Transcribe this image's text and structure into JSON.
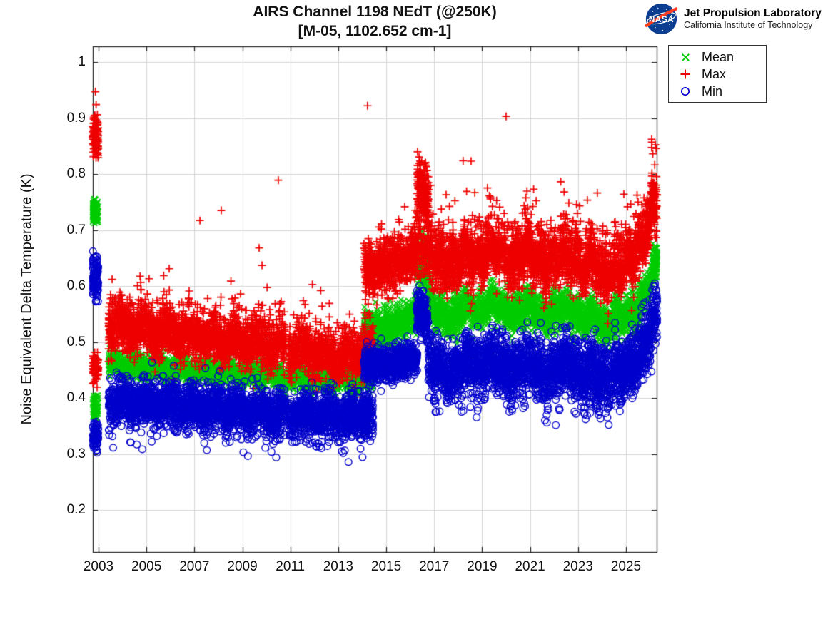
{
  "header": {
    "title_line1": "AIRS Channel 1198 NEdT (@250K)",
    "title_line2": "[M-05, 1102.652 cm-1]"
  },
  "logo": {
    "ball_text": "NASA",
    "org_name": "Jet Propulsion Laboratory",
    "org_sub": "California Institute of Technology",
    "ball_color": "#0b3d91",
    "swoosh_color": "#fc3d21"
  },
  "chart_data": {
    "type": "scatter",
    "title": "AIRS Channel 1198 NEdT (@250K)",
    "subtitle": "[M-05, 1102.652 cm-1]",
    "xlabel": "",
    "ylabel": "Noise Equivalent Delta Temperature (K)",
    "xlim": [
      2002.762,
      2026.282
    ],
    "ylim": [
      0.1251,
      1.028
    ],
    "grid": true,
    "grid_color": "#d5d5d5",
    "axis_color": "#151515",
    "legend_position": "top-right",
    "xticks": {
      "values": [
        2003,
        2005,
        2007,
        2009,
        2011,
        2013,
        2015,
        2017,
        2019,
        2021,
        2023,
        2025
      ],
      "labels": [
        "2003",
        "2005",
        "2007",
        "2009",
        "2011",
        "2013",
        "2015",
        "2017",
        "2019",
        "2021",
        "2023",
        "2025"
      ]
    },
    "yticks": {
      "values": [
        0.2,
        0.3,
        0.4,
        0.5,
        0.6,
        0.7,
        0.8,
        0.9,
        1.0
      ],
      "labels": [
        "0.2",
        "0.3",
        "0.4",
        "0.5",
        "0.6",
        "0.7",
        "0.8",
        "0.9",
        "1"
      ]
    },
    "series": [
      {
        "name": "Mean",
        "marker": "x",
        "color": "#00cc00",
        "segments": [
          {
            "t0": 2002.76,
            "t1": 2002.99,
            "n": 95,
            "keys": [
              [
                2002.76,
                0.735
              ]
            ],
            "spread": 0.012,
            "clip": [
              0.712,
              0.757
            ]
          },
          {
            "t0": 2002.76,
            "t1": 2002.99,
            "n": 65,
            "keys": [
              [
                2002.76,
                0.381
              ]
            ],
            "spread": 0.014,
            "clip": [
              0.354,
              0.408
            ]
          },
          {
            "t0": 2003.42,
            "t1": 2014.45,
            "n": 3450,
            "keys": [
              [
                2003.42,
                0.459
              ],
              [
                2005,
                0.455
              ],
              [
                2007,
                0.449
              ],
              [
                2009,
                0.444
              ],
              [
                2011,
                0.437
              ],
              [
                2013,
                0.433
              ],
              [
                2014.45,
                0.437
              ]
            ],
            "spread": 0.011,
            "osc": [
              0.006,
              0.95
            ],
            "gaps": [
              [
                2010.8,
                2010.93
              ]
            ]
          },
          {
            "t0": 2014.07,
            "t1": 2016.3,
            "n": 780,
            "keys": [
              [
                2014.07,
                0.524
              ],
              [
                2014.5,
                0.52
              ],
              [
                2015.2,
                0.528
              ],
              [
                2016.0,
                0.54
              ],
              [
                2016.3,
                0.556
              ]
            ],
            "spread": 0.016
          },
          {
            "t0": 2016.28,
            "t1": 2016.78,
            "n": 210,
            "keys": [
              [
                2016.28,
                0.648
              ],
              [
                2016.6,
                0.646
              ],
              [
                2016.78,
                0.615
              ]
            ],
            "spread": 0.024,
            "clip": [
              0.582,
              0.702
            ]
          },
          {
            "t0": 2016.75,
            "t1": 2026.3,
            "n": 3250,
            "keys": [
              [
                2016.75,
                0.568
              ],
              [
                2017.3,
                0.548
              ],
              [
                2017.8,
                0.542
              ],
              [
                2018.3,
                0.565
              ],
              [
                2018.8,
                0.55
              ],
              [
                2019.4,
                0.572
              ],
              [
                2019.9,
                0.556
              ],
              [
                2020.3,
                0.545
              ],
              [
                2020.8,
                0.568
              ],
              [
                2021.3,
                0.553
              ],
              [
                2021.8,
                0.545
              ],
              [
                2022.3,
                0.563
              ],
              [
                2022.8,
                0.556
              ],
              [
                2023.2,
                0.538
              ],
              [
                2023.6,
                0.553
              ],
              [
                2024.1,
                0.524
              ],
              [
                2024.5,
                0.54
              ],
              [
                2025.0,
                0.548
              ],
              [
                2025.5,
                0.558
              ],
              [
                2025.9,
                0.6
              ],
              [
                2026.15,
                0.632
              ],
              [
                2026.3,
                0.645
              ]
            ],
            "spread": 0.016,
            "osc": [
              0.007,
              0.52
            ]
          }
        ],
        "outliers": []
      },
      {
        "name": "Max",
        "marker": "+",
        "color": "#ee0000",
        "segments": [
          {
            "t0": 2002.76,
            "t1": 2002.99,
            "n": 115,
            "keys": [
              [
                2002.76,
                0.868
              ]
            ],
            "spread": 0.02,
            "clip": [
              0.827,
              0.909
            ]
          },
          {
            "t0": 2002.76,
            "t1": 2002.99,
            "n": 70,
            "keys": [
              [
                2002.76,
                0.454
              ]
            ],
            "spread": 0.017,
            "clip": [
              0.419,
              0.49
            ]
          },
          {
            "t0": 2003.42,
            "t1": 2014.45,
            "n": 3550,
            "keys": [
              [
                2003.42,
                0.528
              ],
              [
                2004.5,
                0.524
              ],
              [
                2006,
                0.513
              ],
              [
                2008,
                0.504
              ],
              [
                2010,
                0.494
              ],
              [
                2012,
                0.478
              ],
              [
                2013.5,
                0.474
              ],
              [
                2014.45,
                0.48
              ]
            ],
            "spread": 0.02,
            "osc": [
              0.01,
              0.95
            ],
            "spike": [
              0.12,
              0.038,
              1
            ],
            "gaps": [
              [
                2010.8,
                2010.93
              ]
            ]
          },
          {
            "t0": 2014.07,
            "t1": 2016.3,
            "n": 800,
            "keys": [
              [
                2014.07,
                0.625
              ],
              [
                2015,
                0.632
              ],
              [
                2016,
                0.65
              ],
              [
                2016.3,
                0.665
              ]
            ],
            "spread": 0.022,
            "spike": [
              0.1,
              0.03,
              1
            ]
          },
          {
            "t0": 2016.28,
            "t1": 2016.78,
            "n": 230,
            "keys": [
              [
                2016.28,
                0.772
              ],
              [
                2016.6,
                0.768
              ],
              [
                2016.78,
                0.738
              ]
            ],
            "spread": 0.027,
            "clip": [
              0.698,
              0.848
            ]
          },
          {
            "t0": 2016.3,
            "t1": 2016.78,
            "n": 90,
            "keys": [
              [
                2016.3,
                0.668
              ]
            ],
            "spread": 0.03,
            "clip": [
              0.613,
              0.72
            ]
          },
          {
            "t0": 2016.75,
            "t1": 2026.3,
            "n": 3350,
            "keys": [
              [
                2016.75,
                0.66
              ],
              [
                2017.3,
                0.64
              ],
              [
                2017.8,
                0.632
              ],
              [
                2018.3,
                0.66
              ],
              [
                2018.8,
                0.64
              ],
              [
                2019.4,
                0.67
              ],
              [
                2019.9,
                0.65
              ],
              [
                2020.3,
                0.634
              ],
              [
                2020.8,
                0.664
              ],
              [
                2021.3,
                0.647
              ],
              [
                2021.8,
                0.634
              ],
              [
                2022.3,
                0.66
              ],
              [
                2022.8,
                0.65
              ],
              [
                2023.2,
                0.63
              ],
              [
                2023.6,
                0.65
              ],
              [
                2024.1,
                0.61
              ],
              [
                2024.5,
                0.63
              ],
              [
                2025.0,
                0.64
              ],
              [
                2025.5,
                0.658
              ],
              [
                2025.9,
                0.705
              ],
              [
                2026.15,
                0.74
              ],
              [
                2026.3,
                0.752
              ]
            ],
            "spread": 0.024,
            "osc": [
              0.011,
              0.52
            ],
            "spike": [
              0.11,
              0.045,
              1
            ]
          }
        ],
        "outliers": [
          [
            2002.87,
            0.947
          ],
          [
            2002.9,
            0.924
          ],
          [
            2005.95,
            0.631
          ],
          [
            2007.23,
            0.717
          ],
          [
            2008.12,
            0.735
          ],
          [
            2009.7,
            0.668
          ],
          [
            2009.82,
            0.637
          ],
          [
            2010.5,
            0.789
          ],
          [
            2011.92,
            0.603
          ],
          [
            2012.27,
            0.592
          ],
          [
            2014.22,
            0.922
          ],
          [
            2017.5,
            0.763
          ],
          [
            2018.54,
            0.823
          ],
          [
            2020.0,
            0.903
          ],
          [
            2021.15,
            0.773
          ],
          [
            2022.42,
            0.768
          ],
          [
            2026.08,
            0.857
          ],
          [
            2026.12,
            0.836
          ]
        ]
      },
      {
        "name": "Min",
        "marker": "o",
        "color": "#0000cc",
        "segments": [
          {
            "t0": 2002.76,
            "t1": 2002.99,
            "n": 105,
            "keys": [
              [
                2002.76,
                0.615
              ]
            ],
            "spread": 0.022,
            "clip": [
              0.569,
              0.663
            ]
          },
          {
            "t0": 2002.76,
            "t1": 2002.99,
            "n": 70,
            "keys": [
              [
                2002.76,
                0.331
              ]
            ],
            "spread": 0.013,
            "clip": [
              0.301,
              0.359
            ]
          },
          {
            "t0": 2003.42,
            "t1": 2014.45,
            "n": 3450,
            "keys": [
              [
                2003.42,
                0.396
              ],
              [
                2005,
                0.393
              ],
              [
                2007,
                0.386
              ],
              [
                2009,
                0.379
              ],
              [
                2011,
                0.371
              ],
              [
                2013,
                0.369
              ],
              [
                2014.45,
                0.373
              ]
            ],
            "spread": 0.02,
            "osc": [
              0.007,
              0.95
            ],
            "spike": [
              0.08,
              0.028,
              -1
            ],
            "gaps": [
              [
                2010.8,
                2010.93
              ]
            ]
          },
          {
            "t0": 2014.07,
            "t1": 2016.3,
            "n": 760,
            "keys": [
              [
                2014.07,
                0.458
              ],
              [
                2015.2,
                0.462
              ],
              [
                2016.3,
                0.471
              ]
            ],
            "spread": 0.014
          },
          {
            "t0": 2016.28,
            "t1": 2016.72,
            "n": 190,
            "keys": [
              [
                2016.28,
                0.556
              ],
              [
                2016.55,
                0.555
              ],
              [
                2016.72,
                0.52
              ]
            ],
            "spread": 0.02,
            "clip": [
              0.498,
              0.604
            ]
          },
          {
            "t0": 2016.75,
            "t1": 2026.3,
            "n": 3250,
            "keys": [
              [
                2016.75,
                0.468
              ],
              [
                2017.3,
                0.449
              ],
              [
                2017.8,
                0.443
              ],
              [
                2018.3,
                0.468
              ],
              [
                2018.8,
                0.453
              ],
              [
                2019.4,
                0.476
              ],
              [
                2019.9,
                0.458
              ],
              [
                2020.3,
                0.446
              ],
              [
                2020.8,
                0.468
              ],
              [
                2021.3,
                0.453
              ],
              [
                2021.8,
                0.443
              ],
              [
                2022.3,
                0.465
              ],
              [
                2022.8,
                0.458
              ],
              [
                2023.2,
                0.439
              ],
              [
                2023.6,
                0.455
              ],
              [
                2024.1,
                0.429
              ],
              [
                2024.5,
                0.446
              ],
              [
                2025.0,
                0.453
              ],
              [
                2025.5,
                0.466
              ],
              [
                2025.9,
                0.508
              ],
              [
                2026.15,
                0.54
              ],
              [
                2026.3,
                0.55
              ]
            ],
            "spread": 0.026,
            "osc": [
              0.009,
              0.52
            ],
            "spike": [
              0.06,
              0.032,
              -1
            ]
          }
        ],
        "outliers": [
          [
            2010.2,
            0.329
          ],
          [
            2012.6,
            0.331
          ],
          [
            2021.7,
            0.356
          ],
          [
            2023.32,
            0.362
          ],
          [
            2024.28,
            0.352
          ],
          [
            2026.2,
            0.6
          ],
          [
            2026.25,
            0.592
          ]
        ]
      }
    ]
  }
}
